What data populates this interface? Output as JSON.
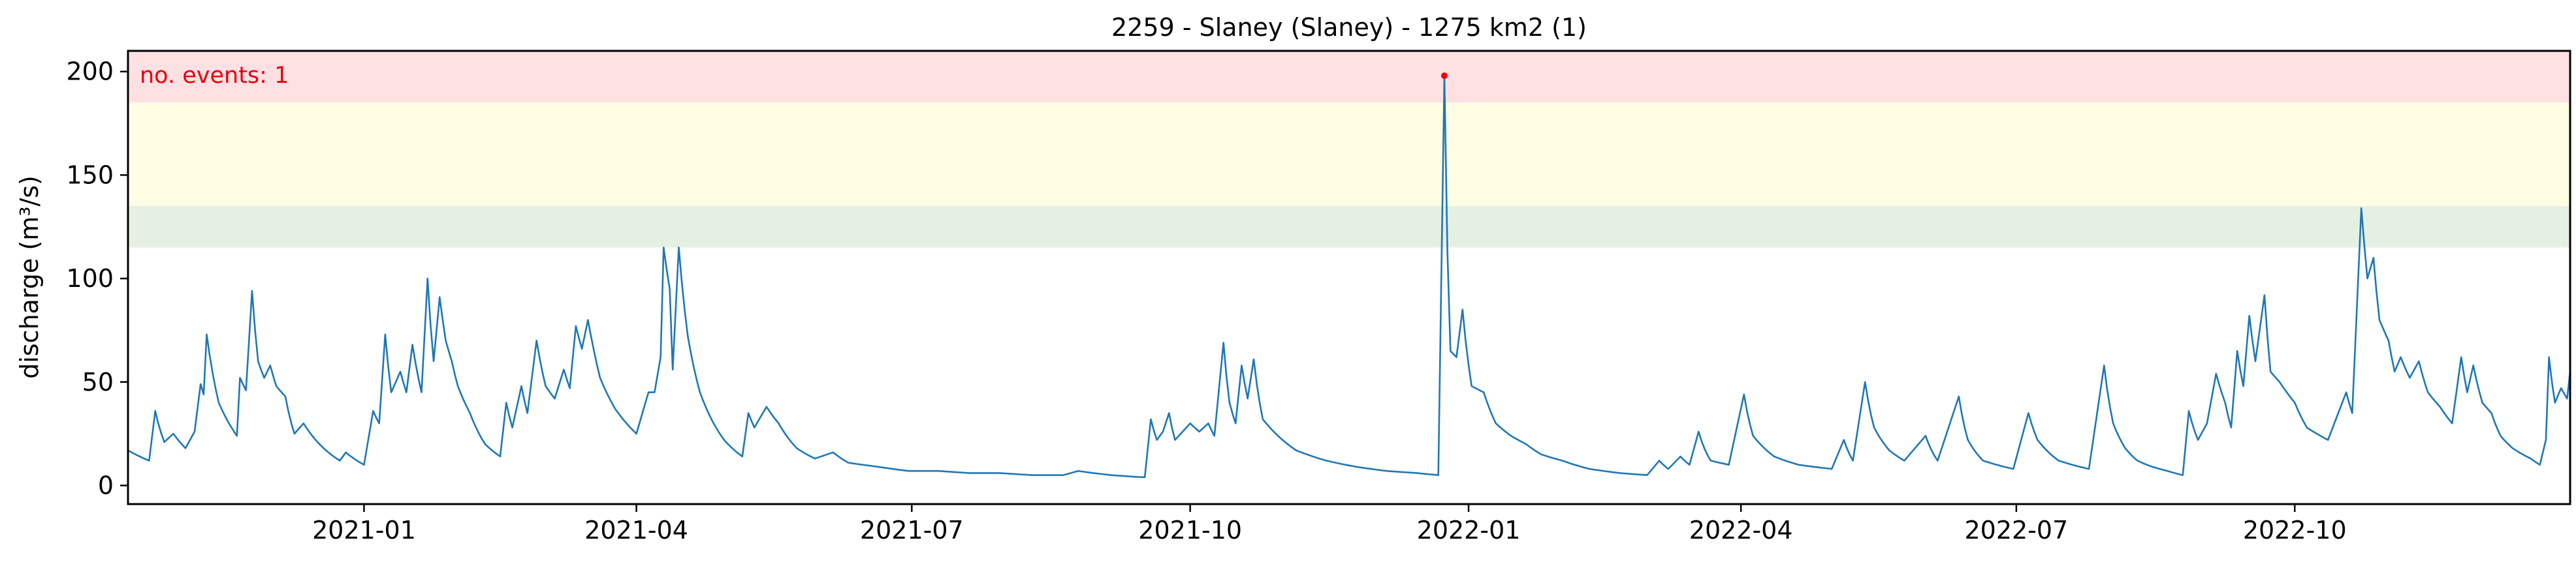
{
  "chart_data": {
    "type": "line",
    "title": "2259 - Slaney (Slaney) - 1275 km2 (1)",
    "xlabel": "",
    "ylabel": "discharge (m³/s)",
    "xlim": [
      "2020-10-15",
      "2022-12-31"
    ],
    "ylim": [
      -9,
      210
    ],
    "x_ticks": [
      "2021-01",
      "2021-04",
      "2021-07",
      "2021-10",
      "2022-01",
      "2022-04",
      "2022-07",
      "2022-10"
    ],
    "y_ticks": [
      0,
      50,
      100,
      150,
      200
    ],
    "grid": false,
    "threshold_bands": [
      {
        "y0": 115,
        "y1": 135,
        "color": "#e6f0e2"
      },
      {
        "y0": 135,
        "y1": 185,
        "color": "#fffde3"
      },
      {
        "y0": 185,
        "y1": 210,
        "color": "#ffe1e4"
      }
    ],
    "annotation": "no. events: 1",
    "annotation_color": "#e8000b",
    "series_color": "#1f77b4",
    "event_color": "#e8000b",
    "event": {
      "x": "2021-12-24",
      "y": 198
    },
    "series": [
      {
        "values": [
          [
            "2020-10-15",
            17
          ],
          [
            "2020-10-22",
            12
          ],
          [
            "2020-10-24",
            36
          ],
          [
            "2020-10-27",
            21
          ],
          [
            "2020-10-30",
            25
          ],
          [
            "2020-11-03",
            18
          ],
          [
            "2020-11-06",
            26
          ],
          [
            "2020-11-08",
            49
          ],
          [
            "2020-11-09",
            44
          ],
          [
            "2020-11-10",
            73
          ],
          [
            "2020-11-14",
            40
          ],
          [
            "2020-11-20",
            24
          ],
          [
            "2020-11-21",
            52
          ],
          [
            "2020-11-23",
            46
          ],
          [
            "2020-11-25",
            94
          ],
          [
            "2020-11-27",
            60
          ],
          [
            "2020-11-29",
            52
          ],
          [
            "2020-12-01",
            58
          ],
          [
            "2020-12-03",
            48
          ],
          [
            "2020-12-06",
            43
          ],
          [
            "2020-12-09",
            25
          ],
          [
            "2020-12-12",
            30
          ],
          [
            "2020-12-16",
            22
          ],
          [
            "2020-12-24",
            12
          ],
          [
            "2020-12-26",
            16
          ],
          [
            "2021-01-01",
            10
          ],
          [
            "2021-01-04",
            36
          ],
          [
            "2021-01-06",
            30
          ],
          [
            "2021-01-08",
            73
          ],
          [
            "2021-01-10",
            45
          ],
          [
            "2021-01-13",
            55
          ],
          [
            "2021-01-15",
            45
          ],
          [
            "2021-01-17",
            68
          ],
          [
            "2021-01-20",
            45
          ],
          [
            "2021-01-22",
            100
          ],
          [
            "2021-01-24",
            60
          ],
          [
            "2021-01-26",
            91
          ],
          [
            "2021-01-28",
            70
          ],
          [
            "2021-01-30",
            60
          ],
          [
            "2021-02-01",
            48
          ],
          [
            "2021-02-05",
            35
          ],
          [
            "2021-02-10",
            20
          ],
          [
            "2021-02-15",
            14
          ],
          [
            "2021-02-17",
            40
          ],
          [
            "2021-02-19",
            28
          ],
          [
            "2021-02-22",
            48
          ],
          [
            "2021-02-24",
            35
          ],
          [
            "2021-02-27",
            70
          ],
          [
            "2021-03-02",
            48
          ],
          [
            "2021-03-05",
            42
          ],
          [
            "2021-03-08",
            56
          ],
          [
            "2021-03-10",
            47
          ],
          [
            "2021-03-12",
            77
          ],
          [
            "2021-03-14",
            66
          ],
          [
            "2021-03-16",
            80
          ],
          [
            "2021-03-18",
            65
          ],
          [
            "2021-03-20",
            52
          ],
          [
            "2021-03-25",
            37
          ],
          [
            "2021-04-01",
            25
          ],
          [
            "2021-04-05",
            45
          ],
          [
            "2021-04-07",
            45
          ],
          [
            "2021-04-09",
            62
          ],
          [
            "2021-04-10",
            115
          ],
          [
            "2021-04-12",
            95
          ],
          [
            "2021-04-13",
            56
          ],
          [
            "2021-04-15",
            115
          ],
          [
            "2021-04-18",
            72
          ],
          [
            "2021-04-22",
            45
          ],
          [
            "2021-04-30",
            22
          ],
          [
            "2021-05-06",
            14
          ],
          [
            "2021-05-08",
            35
          ],
          [
            "2021-05-10",
            28
          ],
          [
            "2021-05-14",
            38
          ],
          [
            "2021-05-18",
            30
          ],
          [
            "2021-05-24",
            18
          ],
          [
            "2021-05-30",
            13
          ],
          [
            "2021-06-05",
            16
          ],
          [
            "2021-06-10",
            11
          ],
          [
            "2021-06-20",
            9
          ],
          [
            "2021-06-30",
            7
          ],
          [
            "2021-07-10",
            7
          ],
          [
            "2021-07-20",
            6
          ],
          [
            "2021-07-30",
            6
          ],
          [
            "2021-08-10",
            5
          ],
          [
            "2021-08-20",
            5
          ],
          [
            "2021-08-25",
            7
          ],
          [
            "2021-09-05",
            5
          ],
          [
            "2021-09-15",
            4
          ],
          [
            "2021-09-16",
            4
          ],
          [
            "2021-09-18",
            32
          ],
          [
            "2021-09-20",
            22
          ],
          [
            "2021-09-22",
            26
          ],
          [
            "2021-09-24",
            35
          ],
          [
            "2021-09-26",
            22
          ],
          [
            "2021-10-01",
            30
          ],
          [
            "2021-10-04",
            26
          ],
          [
            "2021-10-07",
            30
          ],
          [
            "2021-10-09",
            24
          ],
          [
            "2021-10-12",
            69
          ],
          [
            "2021-10-14",
            40
          ],
          [
            "2021-10-16",
            30
          ],
          [
            "2021-10-18",
            58
          ],
          [
            "2021-10-20",
            42
          ],
          [
            "2021-10-22",
            61
          ],
          [
            "2021-10-25",
            32
          ],
          [
            "2021-10-30",
            24
          ],
          [
            "2021-11-05",
            17
          ],
          [
            "2021-11-15",
            12
          ],
          [
            "2021-11-25",
            9
          ],
          [
            "2021-12-05",
            7
          ],
          [
            "2021-12-15",
            6
          ],
          [
            "2021-12-22",
            5
          ],
          [
            "2021-12-24",
            198
          ],
          [
            "2021-12-26",
            65
          ],
          [
            "2021-12-28",
            62
          ],
          [
            "2021-12-30",
            85
          ],
          [
            "2022-01-02",
            48
          ],
          [
            "2022-01-06",
            45
          ],
          [
            "2022-01-10",
            30
          ],
          [
            "2022-01-15",
            24
          ],
          [
            "2022-01-20",
            20
          ],
          [
            "2022-01-25",
            15
          ],
          [
            "2022-02-01",
            12
          ],
          [
            "2022-02-10",
            8
          ],
          [
            "2022-02-20",
            6
          ],
          [
            "2022-03-01",
            5
          ],
          [
            "2022-03-05",
            12
          ],
          [
            "2022-03-08",
            8
          ],
          [
            "2022-03-12",
            14
          ],
          [
            "2022-03-15",
            10
          ],
          [
            "2022-03-18",
            26
          ],
          [
            "2022-03-22",
            12
          ],
          [
            "2022-03-28",
            10
          ],
          [
            "2022-04-02",
            44
          ],
          [
            "2022-04-05",
            24
          ],
          [
            "2022-04-12",
            14
          ],
          [
            "2022-04-20",
            10
          ],
          [
            "2022-05-01",
            8
          ],
          [
            "2022-05-05",
            22
          ],
          [
            "2022-05-08",
            12
          ],
          [
            "2022-05-12",
            50
          ],
          [
            "2022-05-15",
            28
          ],
          [
            "2022-05-20",
            17
          ],
          [
            "2022-05-25",
            12
          ],
          [
            "2022-06-01",
            24
          ],
          [
            "2022-06-05",
            12
          ],
          [
            "2022-06-12",
            43
          ],
          [
            "2022-06-15",
            22
          ],
          [
            "2022-06-20",
            12
          ],
          [
            "2022-06-30",
            8
          ],
          [
            "2022-07-05",
            35
          ],
          [
            "2022-07-08",
            22
          ],
          [
            "2022-07-15",
            12
          ],
          [
            "2022-07-25",
            8
          ],
          [
            "2022-07-30",
            58
          ],
          [
            "2022-08-02",
            30
          ],
          [
            "2022-08-06",
            18
          ],
          [
            "2022-08-10",
            12
          ],
          [
            "2022-08-15",
            9
          ],
          [
            "2022-08-20",
            7
          ],
          [
            "2022-08-25",
            5
          ],
          [
            "2022-08-27",
            36
          ],
          [
            "2022-08-30",
            22
          ],
          [
            "2022-09-02",
            30
          ],
          [
            "2022-09-05",
            54
          ],
          [
            "2022-09-08",
            40
          ],
          [
            "2022-09-10",
            28
          ],
          [
            "2022-09-12",
            65
          ],
          [
            "2022-09-14",
            48
          ],
          [
            "2022-09-16",
            82
          ],
          [
            "2022-09-18",
            60
          ],
          [
            "2022-09-21",
            92
          ],
          [
            "2022-09-23",
            55
          ],
          [
            "2022-09-26",
            50
          ],
          [
            "2022-10-01",
            40
          ],
          [
            "2022-10-05",
            28
          ],
          [
            "2022-10-12",
            22
          ],
          [
            "2022-10-18",
            45
          ],
          [
            "2022-10-20",
            35
          ],
          [
            "2022-10-23",
            134
          ],
          [
            "2022-10-25",
            100
          ],
          [
            "2022-10-27",
            110
          ],
          [
            "2022-10-29",
            80
          ],
          [
            "2022-11-01",
            70
          ],
          [
            "2022-11-03",
            55
          ],
          [
            "2022-11-05",
            62
          ],
          [
            "2022-11-08",
            52
          ],
          [
            "2022-11-11",
            60
          ],
          [
            "2022-11-14",
            45
          ],
          [
            "2022-11-18",
            38
          ],
          [
            "2022-11-22",
            30
          ],
          [
            "2022-11-25",
            62
          ],
          [
            "2022-11-27",
            45
          ],
          [
            "2022-11-29",
            58
          ],
          [
            "2022-12-02",
            40
          ],
          [
            "2022-12-05",
            35
          ],
          [
            "2022-12-08",
            24
          ],
          [
            "2022-12-12",
            18
          ],
          [
            "2022-12-18",
            13
          ],
          [
            "2022-12-21",
            10
          ],
          [
            "2022-12-23",
            22
          ],
          [
            "2022-12-24",
            62
          ],
          [
            "2022-12-26",
            40
          ],
          [
            "2022-12-28",
            47
          ],
          [
            "2022-12-30",
            42
          ],
          [
            "2022-12-31",
            55
          ]
        ]
      }
    ]
  }
}
